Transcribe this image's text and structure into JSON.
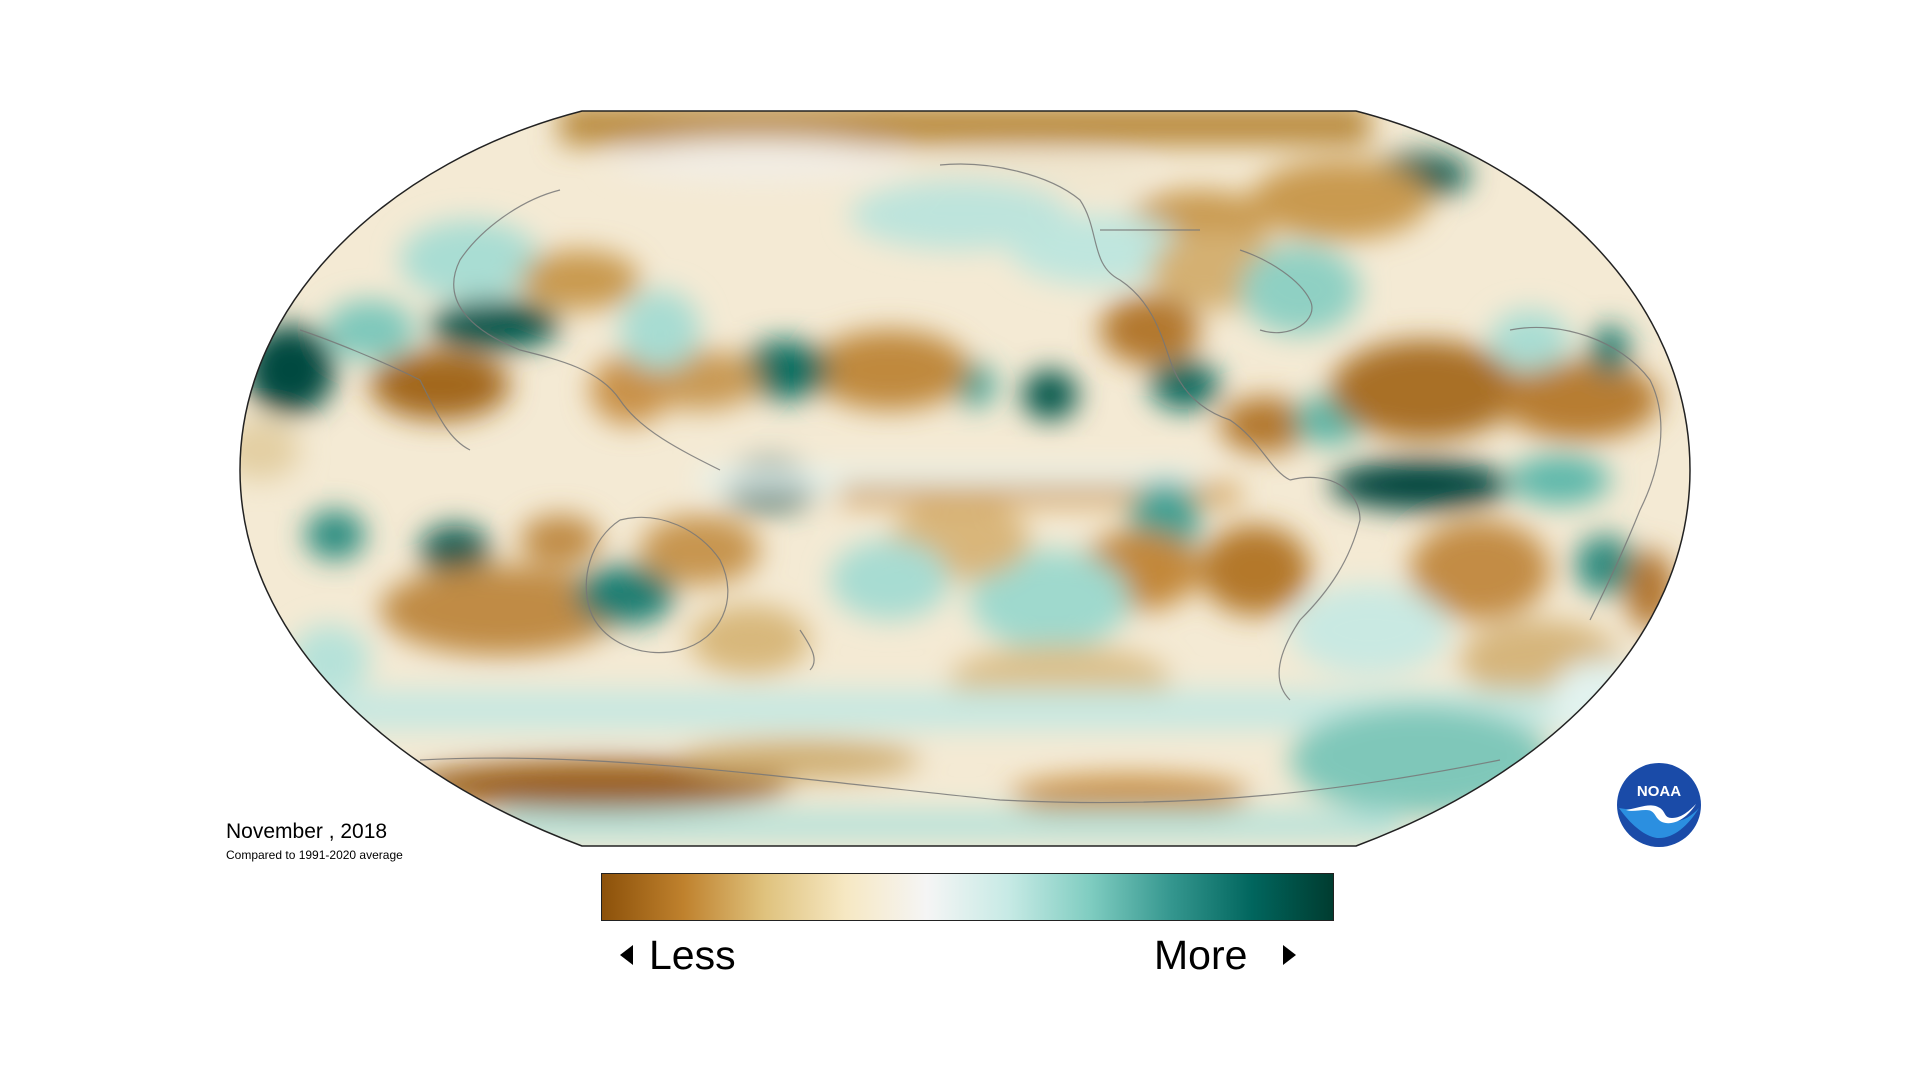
{
  "caption": {
    "title": "November , 2018",
    "subtitle": "Compared to 1991-2020 average"
  },
  "legend": {
    "low_label": "Less",
    "high_label": "More",
    "colors": [
      "#8c510a",
      "#bf812d",
      "#dfc27d",
      "#f6e8c3",
      "#f5f5f5",
      "#c7eae5",
      "#80cdc1",
      "#35978f",
      "#01665e",
      "#003c30"
    ]
  },
  "logo": {
    "text": "NOAA",
    "primary_color": "#1a4ba8",
    "accent_color": "#2b8fe0"
  },
  "map": {
    "projection": "Robinson",
    "center_longitude": "180"
  }
}
